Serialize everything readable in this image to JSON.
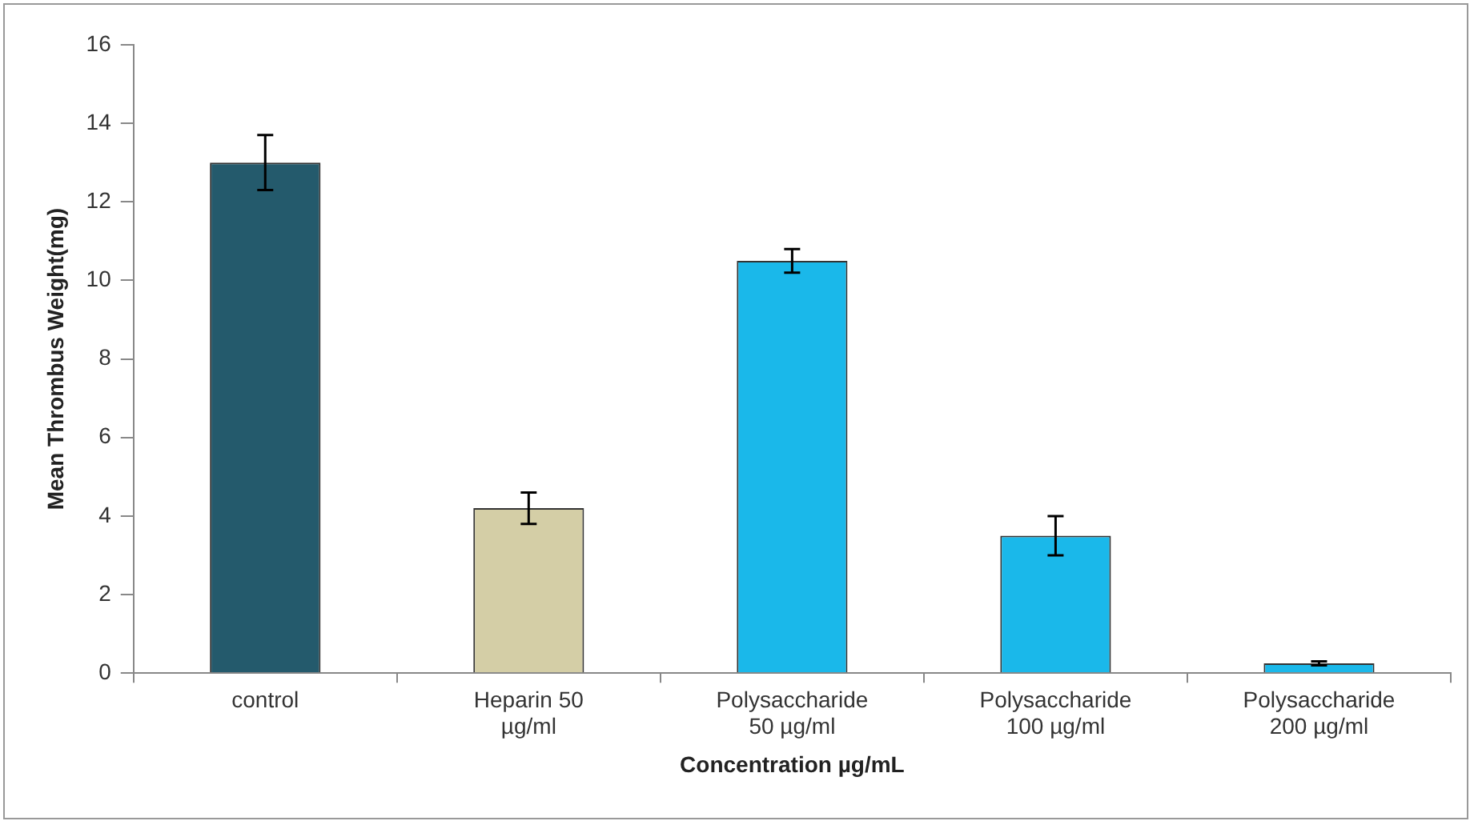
{
  "chart_data": {
    "type": "bar",
    "xlabel": "Concentration µg/mL",
    "ylabel": "Mean Thrombus Weight(mg)",
    "categories": [
      "control",
      "Heparin 50\nµg/ml",
      "Polysaccharide\n50 µg/ml",
      "Polysaccharide\n100 µg/ml",
      "Polysaccharide\n200 µg/ml"
    ],
    "values": [
      13.0,
      4.2,
      10.5,
      3.5,
      0.25
    ],
    "errors": [
      0.7,
      0.4,
      0.3,
      0.5,
      0.05
    ],
    "colors": [
      "#245a6c",
      "#d4cea6",
      "#1ab8ea",
      "#1ab8ea",
      "#1ab8ea"
    ],
    "ylim": [
      0,
      16
    ],
    "yticks": [
      0,
      2,
      4,
      6,
      8,
      10,
      12,
      14,
      16
    ],
    "grid": false,
    "legend": false
  }
}
